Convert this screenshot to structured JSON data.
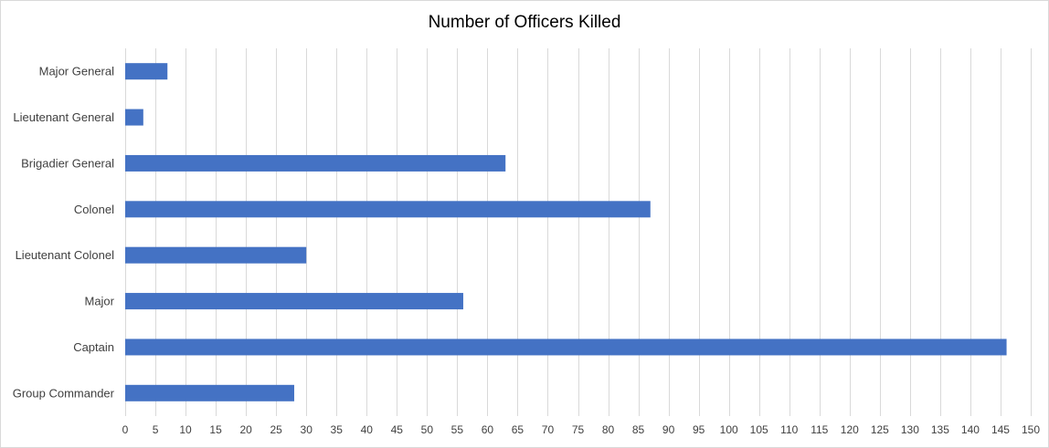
{
  "chart_data": {
    "type": "bar",
    "orientation": "horizontal",
    "title": "Number of Officers Killed",
    "xlabel": "",
    "ylabel": "",
    "categories": [
      "Major General",
      "Lieutenant General",
      "Brigadier General",
      "Colonel",
      "Lieutenant Colonel",
      "Major",
      "Captain",
      "Group Commander"
    ],
    "values": [
      7,
      3,
      63,
      87,
      30,
      56,
      146,
      28
    ],
    "xlim": [
      0,
      150
    ],
    "x_tick_step": 5,
    "grid": "vertical",
    "legend": "none",
    "bar_color": "#4472c4",
    "grid_color": "#d9d9d9"
  }
}
